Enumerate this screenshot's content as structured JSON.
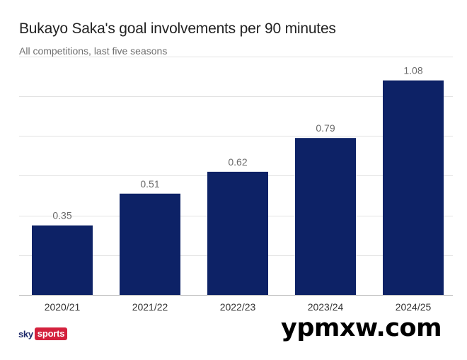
{
  "chart_data": {
    "type": "bar",
    "title": "Bukayo Saka's goal involvements per 90 minutes",
    "subtitle": "All competitions, last five seasons",
    "categories": [
      "2020/21",
      "2021/22",
      "2022/23",
      "2023/24",
      "2024/25"
    ],
    "values": [
      0.35,
      0.51,
      0.62,
      0.79,
      1.08
    ],
    "value_labels": [
      "0.35",
      "0.51",
      "0.62",
      "0.79",
      "1.08"
    ],
    "ylim": [
      0,
      1.2
    ],
    "grid": true,
    "bar_color": "#0d2266",
    "label_color": "#6b6b6b"
  },
  "branding": {
    "logo_sky": "sky",
    "logo_sports": "sports",
    "watermark": "ypmxw.com"
  }
}
